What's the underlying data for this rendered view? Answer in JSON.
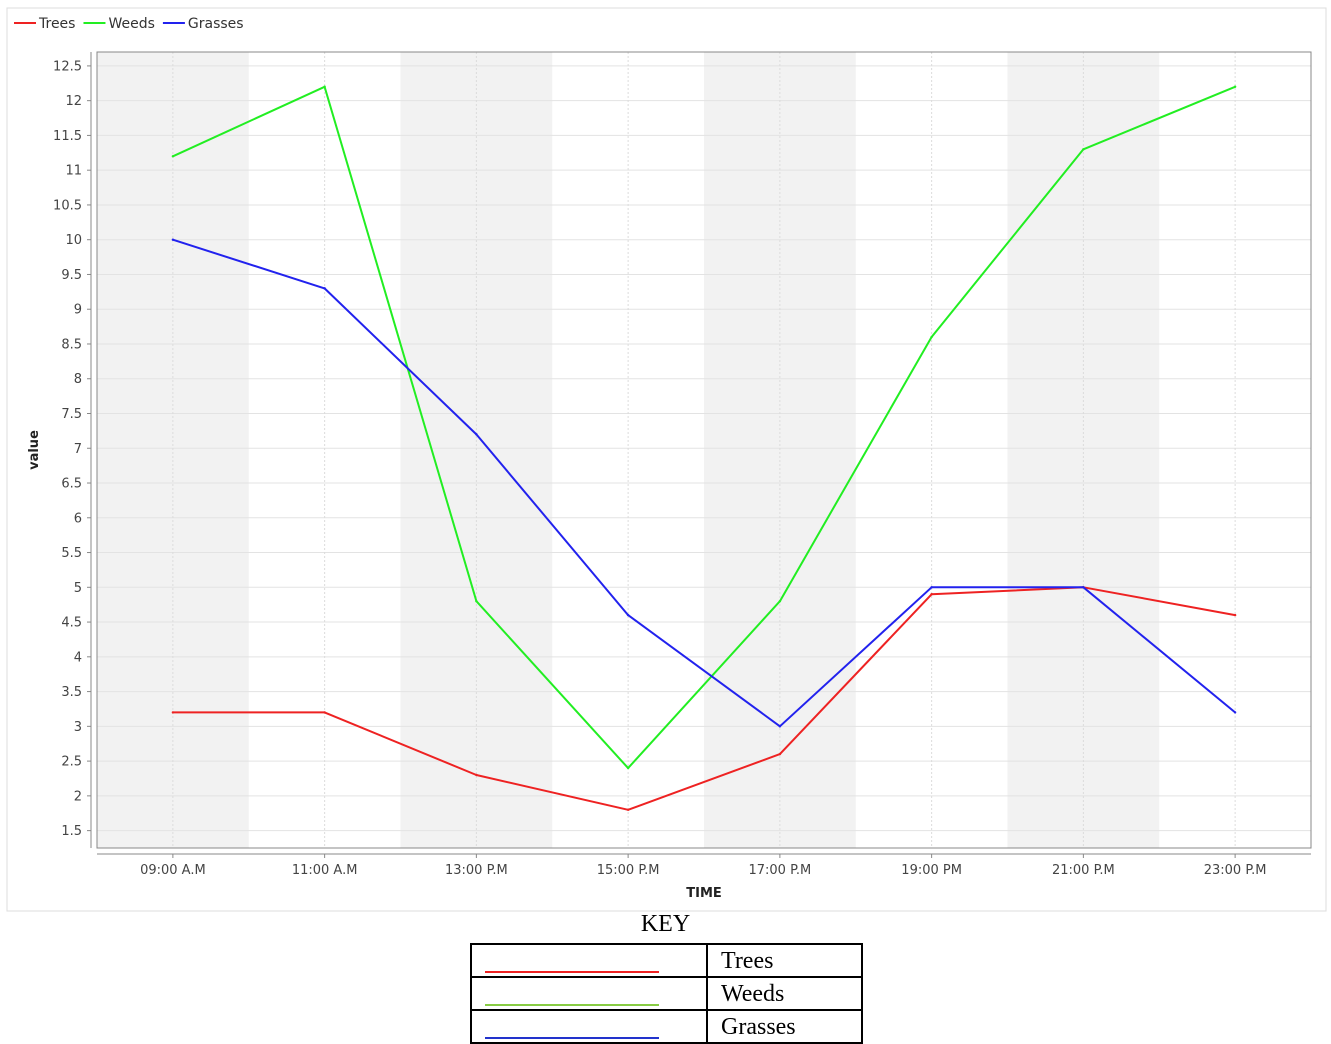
{
  "chart_data": {
    "type": "line",
    "title": "",
    "xlabel": "TIME",
    "ylabel": "value",
    "categories": [
      "09:00 A.M",
      "11:00 A.M",
      "13:00 P.M",
      "15:00 P.M",
      "17:00 P.M",
      "19:00 PM",
      "21:00 P.M",
      "23:00 P.M"
    ],
    "ylim": [
      1.25,
      12.7
    ],
    "yticks": [
      "1.5",
      "2",
      "2.5",
      "3",
      "3.5",
      "4",
      "4.5",
      "5",
      "5.5",
      "6",
      "6.5",
      "7",
      "7.5",
      "8",
      "8.5",
      "9",
      "9.5",
      "10",
      "10.5",
      "11",
      "11.5",
      "12",
      "12.5"
    ],
    "grid": true,
    "legend_position": "top-left",
    "series": [
      {
        "name": "Trees",
        "color": "#ee2222",
        "values": [
          3.2,
          3.2,
          2.3,
          1.8,
          2.6,
          4.9,
          5.0,
          4.6
        ]
      },
      {
        "name": "Weeds",
        "color": "#22ee22",
        "values": [
          11.2,
          12.2,
          4.8,
          2.4,
          4.8,
          8.6,
          11.3,
          12.2
        ]
      },
      {
        "name": "Grasses",
        "color": "#2222ee",
        "values": [
          10.0,
          9.3,
          7.2,
          4.6,
          3.0,
          5.0,
          5.0,
          3.2
        ]
      }
    ]
  },
  "key": {
    "title": "KEY",
    "rows": [
      {
        "label": "Trees",
        "color": "#ee2222"
      },
      {
        "label": "Weeds",
        "color": "#88cc44"
      },
      {
        "label": "Grasses",
        "color": "#2233cc"
      }
    ]
  }
}
